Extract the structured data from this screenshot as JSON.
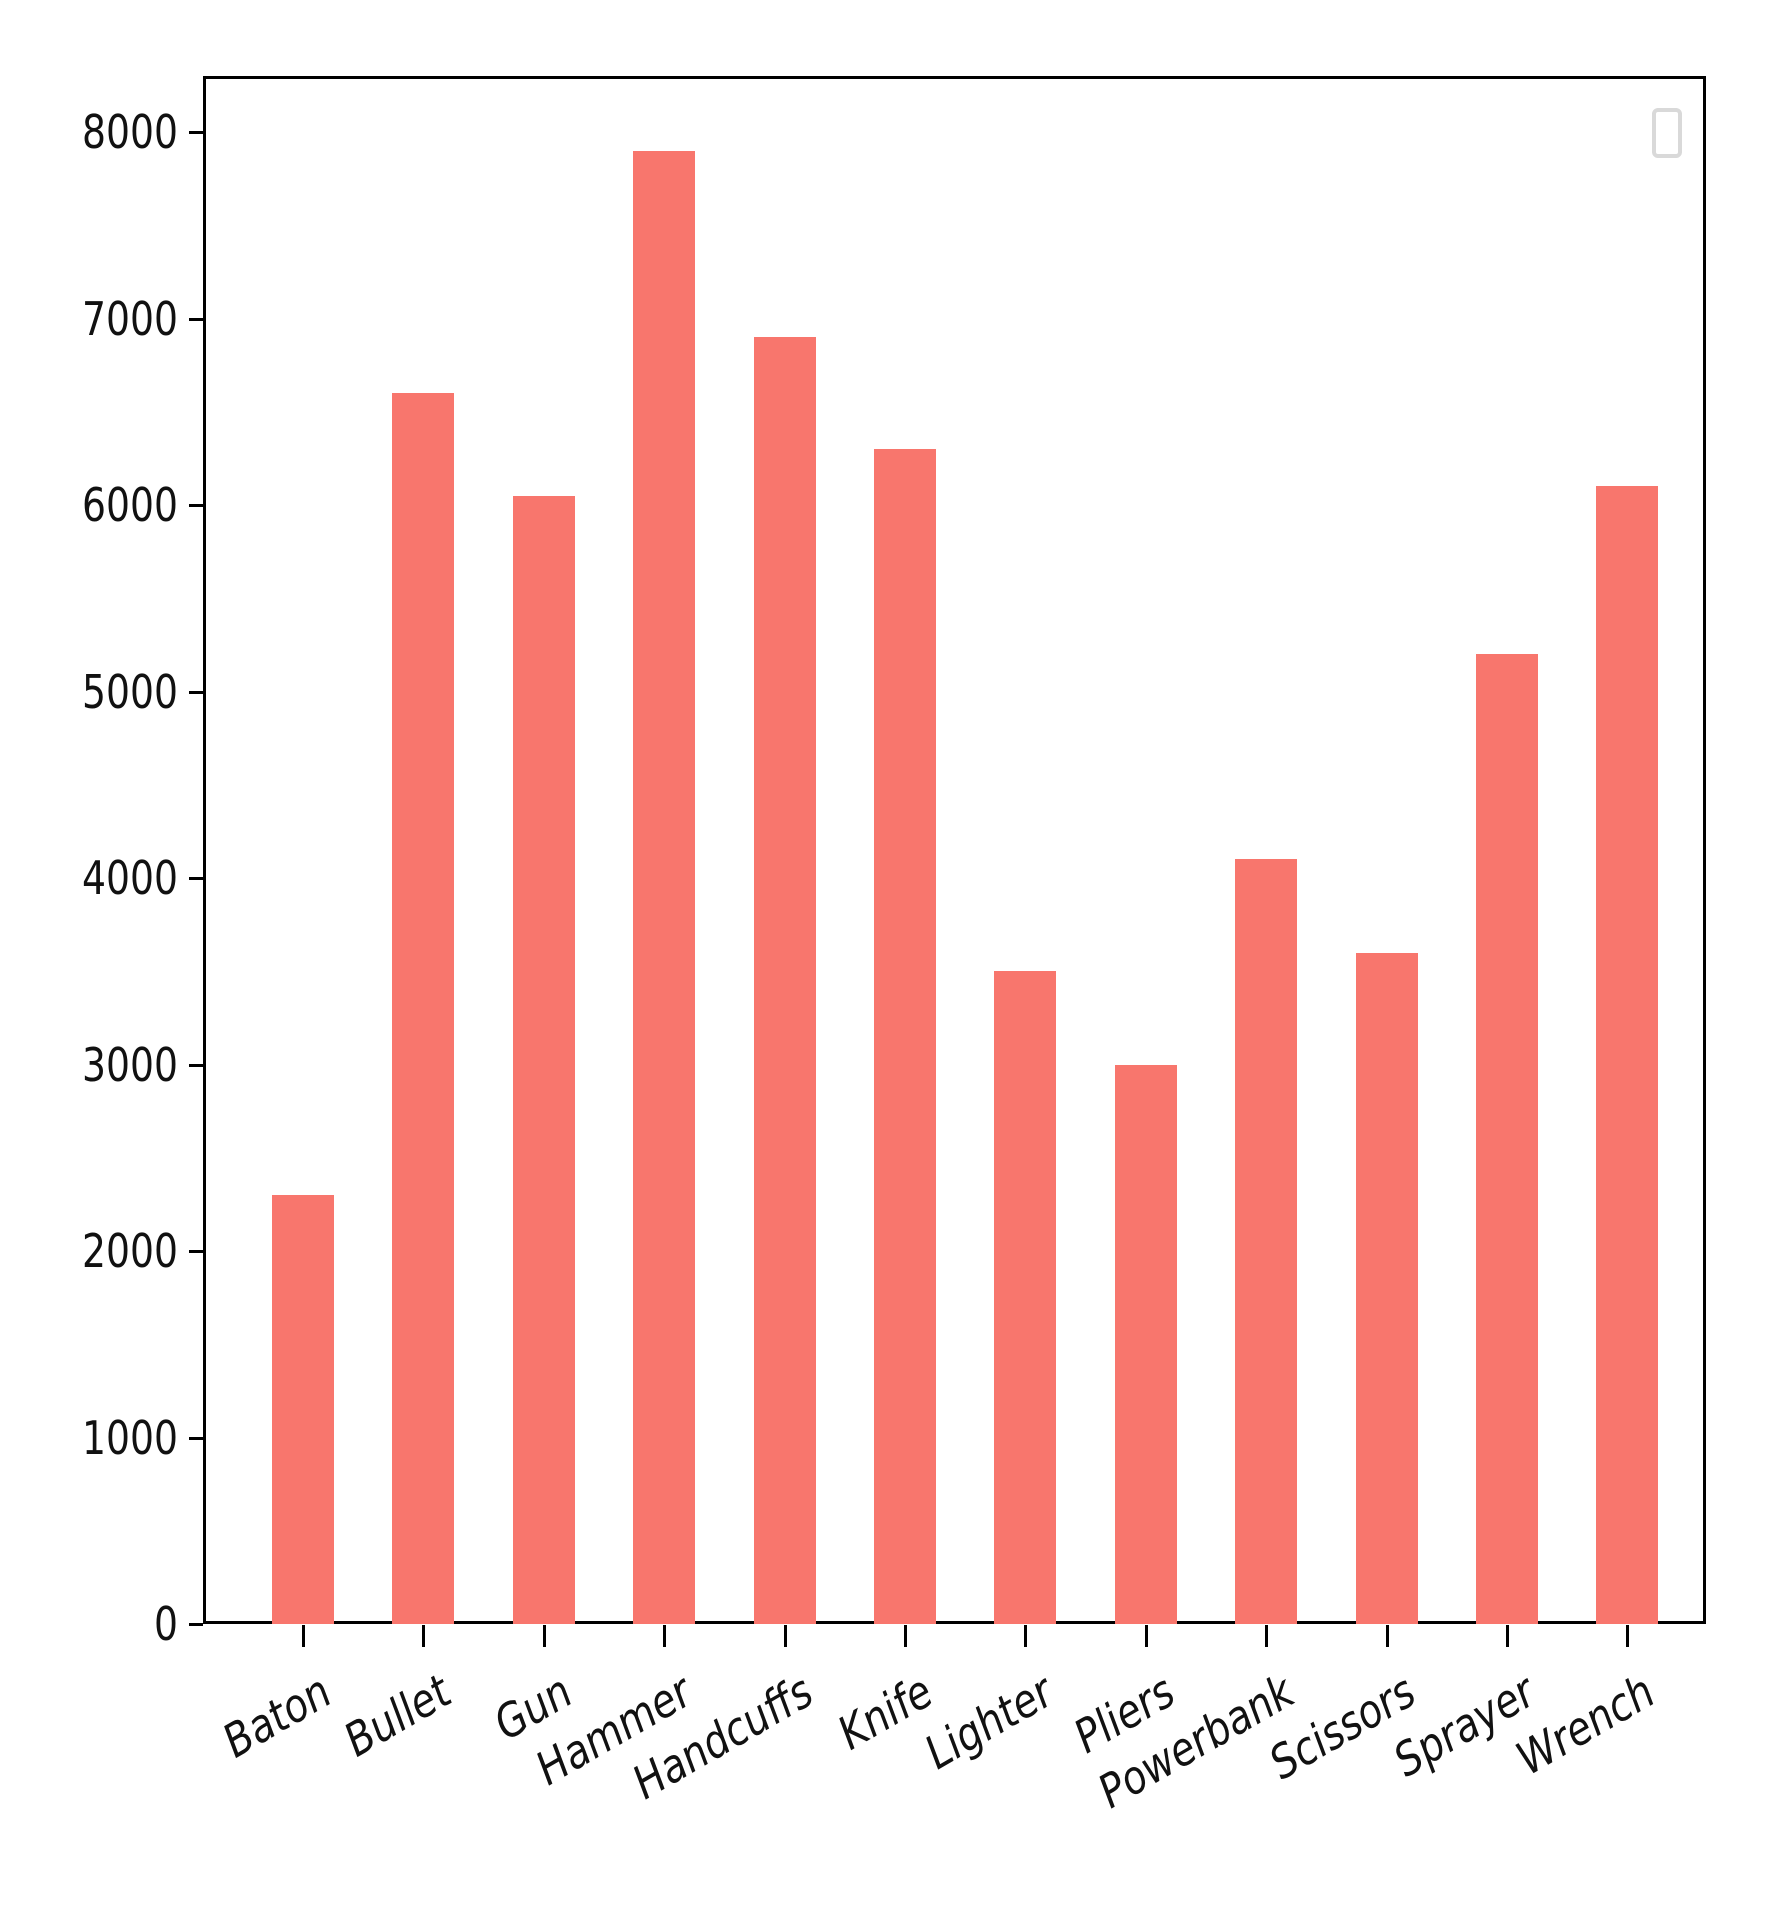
{
  "chart_data": {
    "type": "bar",
    "title": "",
    "xlabel": "",
    "ylabel": "",
    "categories": [
      "Baton",
      "Bullet",
      "Gun",
      "Hammer",
      "Handcuffs",
      "Knife",
      "Lighter",
      "Pliers",
      "Powerbank",
      "Scissors",
      "Sprayer",
      "Wrench"
    ],
    "values": [
      2300,
      6600,
      6050,
      7900,
      6900,
      6300,
      3500,
      3000,
      4100,
      3600,
      5200,
      6100
    ],
    "ylim": [
      0,
      8300
    ],
    "yticks": [
      0,
      1000,
      2000,
      3000,
      4000,
      5000,
      6000,
      7000,
      8000
    ],
    "ytick_labels": [
      "0",
      "1000",
      "2000",
      "3000",
      "4000",
      "5000",
      "6000",
      "7000",
      "8000"
    ],
    "bar_color": "#f8766d",
    "grid": false,
    "legend": {
      "position": "upper right",
      "entries": []
    },
    "xtick_rotation": 30
  }
}
